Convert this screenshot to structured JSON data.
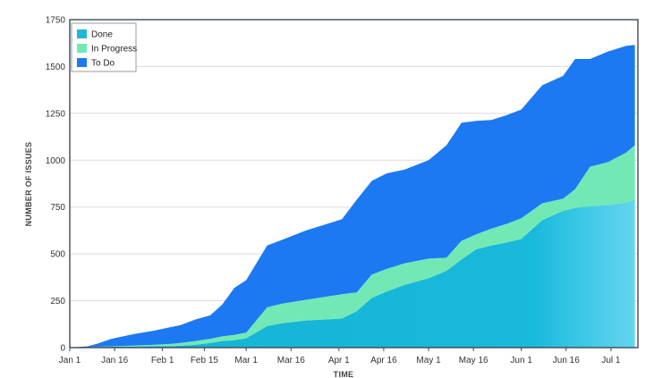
{
  "chart_data": {
    "type": "area",
    "stacked": true,
    "title": "",
    "xlabel": "TIME",
    "ylabel": "NUMBER OF ISSUES",
    "ylim": [
      0,
      1750
    ],
    "y_ticks": [
      0,
      250,
      500,
      750,
      1000,
      1250,
      1500,
      1750
    ],
    "x_ticks": [
      "Jan 1",
      "Jan 16",
      "Feb 1",
      "Feb 15",
      "Mar 1",
      "Mar 16",
      "Apr 1",
      "Apr 16",
      "May 1",
      "May 16",
      "Jun 1",
      "Jun 16",
      "Jul 1"
    ],
    "x_tick_days": [
      0,
      15,
      31,
      45,
      59,
      74,
      90,
      105,
      120,
      135,
      151,
      166,
      181
    ],
    "x_range_days": [
      0,
      190
    ],
    "grid": true,
    "legend_position": "top-left",
    "x": [
      0,
      6,
      9,
      14,
      21,
      28,
      34,
      37,
      42,
      47,
      51,
      55,
      59,
      66,
      71,
      79,
      91,
      96,
      101,
      106,
      112,
      120,
      126,
      131,
      136,
      141,
      146,
      151,
      158,
      165,
      169,
      174,
      180,
      186,
      189
    ],
    "series": [
      {
        "name": "Done",
        "color": "#1fb8d8",
        "values": [
          0,
          2,
          4,
          5,
          6,
          7,
          8,
          10,
          15,
          25,
          35,
          40,
          50,
          115,
          130,
          145,
          155,
          195,
          265,
          300,
          335,
          370,
          410,
          470,
          525,
          545,
          560,
          580,
          680,
          730,
          745,
          755,
          760,
          775,
          790
        ]
      },
      {
        "name": "In Progress",
        "color": "#72e9b4",
        "values": [
          0,
          0,
          1,
          2,
          5,
          8,
          12,
          15,
          20,
          22,
          25,
          28,
          30,
          100,
          105,
          110,
          130,
          100,
          125,
          120,
          115,
          105,
          70,
          100,
          80,
          90,
          100,
          110,
          90,
          65,
          100,
          210,
          230,
          265,
          290
        ]
      },
      {
        "name": "To Do",
        "color": "#1c79f2",
        "values": [
          0,
          5,
          15,
          40,
          60,
          75,
          90,
          95,
          115,
          125,
          170,
          250,
          280,
          330,
          340,
          370,
          400,
          495,
          500,
          510,
          500,
          525,
          600,
          630,
          605,
          580,
          580,
          580,
          630,
          655,
          695,
          575,
          590,
          570,
          535
        ]
      }
    ]
  }
}
